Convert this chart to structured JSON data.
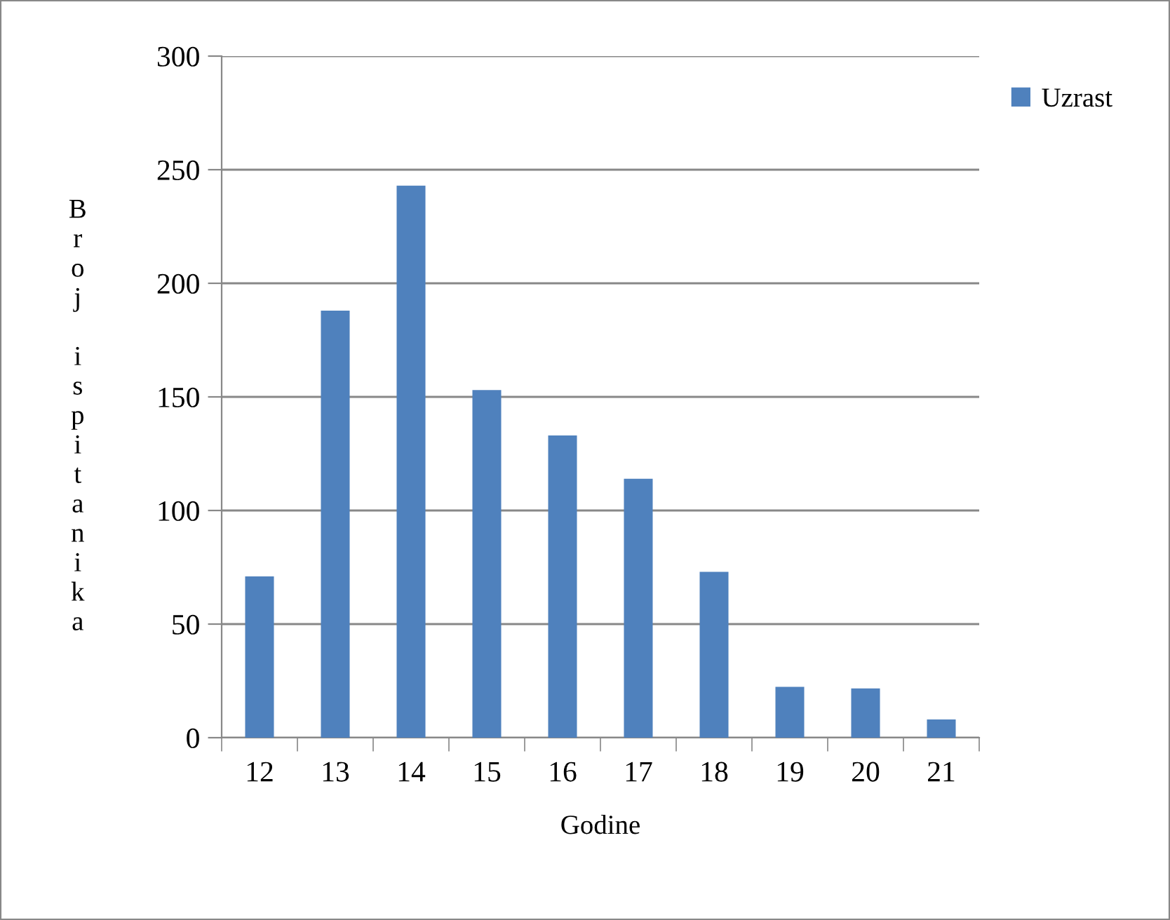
{
  "chart_data": {
    "type": "bar",
    "xlabel": "Godine",
    "ylabel": "Broj ispitanika",
    "categories": [
      "12",
      "13",
      "14",
      "15",
      "16",
      "17",
      "18",
      "19",
      "20",
      "21"
    ],
    "series": [
      {
        "name": "Uzrast",
        "color": "#4f81bd",
        "values": [
          71,
          188,
          243,
          153,
          133,
          114,
          73,
          22.4,
          21.7,
          8
        ]
      }
    ],
    "ylim": [
      0,
      300
    ],
    "yticks": [
      0,
      50,
      100,
      150,
      200,
      250,
      300
    ],
    "grid": "y",
    "legend": "top right"
  }
}
